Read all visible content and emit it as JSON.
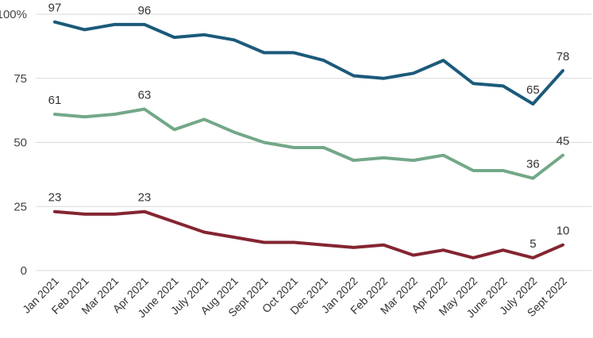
{
  "chart_data": {
    "type": "line",
    "title": "",
    "xlabel": "",
    "ylabel": "",
    "ylim": [
      0,
      100
    ],
    "yticks": [
      {
        "value": 0,
        "label": "0"
      },
      {
        "value": 25,
        "label": "25"
      },
      {
        "value": 50,
        "label": "50"
      },
      {
        "value": 75,
        "label": "75"
      },
      {
        "value": 100,
        "label": "100%"
      }
    ],
    "grid": "horizontal",
    "legend": "none",
    "categories": [
      "Jan 2021",
      "Feb 2021",
      "Mar 2021",
      "Apr 2021",
      "June 2021",
      "July 2021",
      "Aug 2021",
      "Sept 2021",
      "Oct 2021",
      "Dec 2021",
      "Jan 2022",
      "Feb 2022",
      "Mar 2022",
      "Apr 2022",
      "May 2022",
      "June 2022",
      "July 2022",
      "Sept 2022"
    ],
    "series": [
      {
        "color": "#1b5a7a",
        "values": [
          97,
          94,
          96,
          96,
          91,
          92,
          90,
          85,
          85,
          82,
          76,
          75,
          77,
          82,
          73,
          72,
          65,
          78
        ],
        "labels": [
          {
            "index": 0,
            "text": "97"
          },
          {
            "index": 3,
            "text": "96"
          },
          {
            "index": 16,
            "text": "65"
          },
          {
            "index": 17,
            "text": "78"
          }
        ]
      },
      {
        "color": "#73a888",
        "values": [
          61,
          60,
          61,
          63,
          55,
          59,
          54,
          50,
          48,
          48,
          43,
          44,
          43,
          45,
          39,
          39,
          36,
          45
        ],
        "labels": [
          {
            "index": 0,
            "text": "61"
          },
          {
            "index": 3,
            "text": "63"
          },
          {
            "index": 16,
            "text": "36"
          },
          {
            "index": 17,
            "text": "45"
          }
        ]
      },
      {
        "color": "#842531",
        "values": [
          23,
          22,
          22,
          23,
          19,
          15,
          13,
          11,
          11,
          10,
          9,
          10,
          6,
          8,
          5,
          8,
          5,
          10
        ],
        "labels": [
          {
            "index": 0,
            "text": "23"
          },
          {
            "index": 3,
            "text": "23"
          },
          {
            "index": 16,
            "text": "5"
          },
          {
            "index": 17,
            "text": "10"
          }
        ]
      }
    ]
  }
}
